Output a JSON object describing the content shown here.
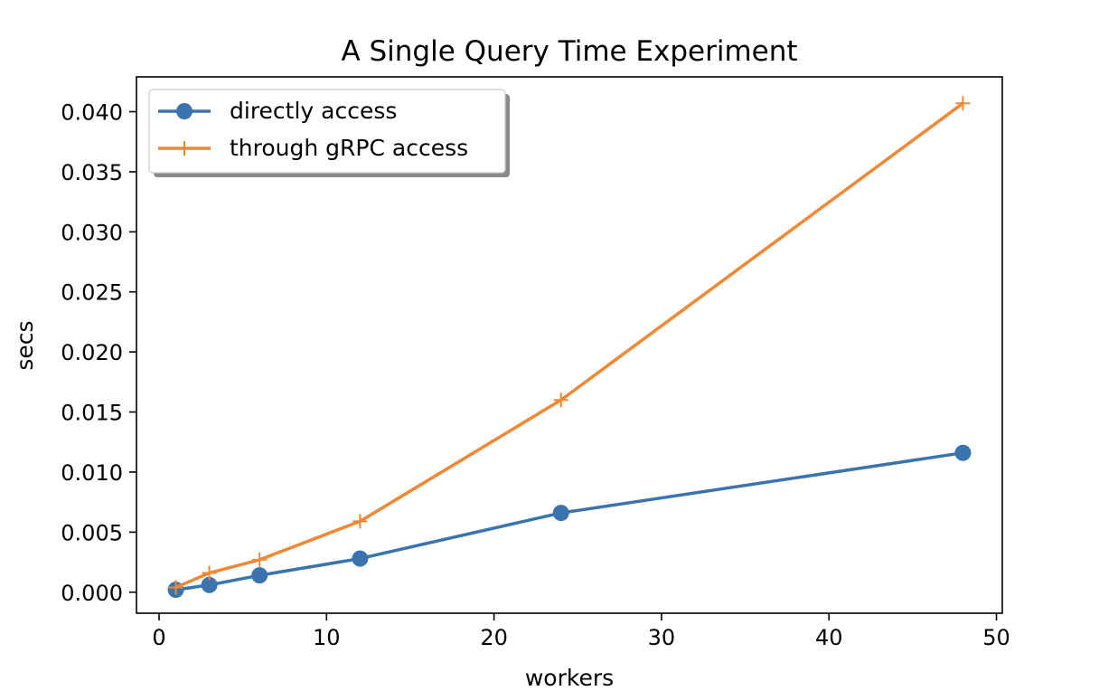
{
  "chart_data": {
    "type": "line",
    "title": "A Single Query Time Experiment",
    "xlabel": "workers",
    "ylabel": "secs",
    "xlim": [
      -1.35,
      50.35
    ],
    "ylim": [
      -0.00175,
      0.0429
    ],
    "xticks": [
      0,
      10,
      20,
      30,
      40,
      50
    ],
    "xtick_labels": [
      "0",
      "10",
      "20",
      "30",
      "40",
      "50"
    ],
    "yticks": [
      0.0,
      0.005,
      0.01,
      0.015,
      0.02,
      0.025,
      0.03,
      0.035,
      0.04
    ],
    "ytick_labels": [
      "0.000",
      "0.005",
      "0.010",
      "0.015",
      "0.020",
      "0.025",
      "0.030",
      "0.035",
      "0.040"
    ],
    "grid": false,
    "legend_position": "upper-left",
    "series": [
      {
        "name": "directly access",
        "color": "#3a73ad",
        "marker": "circle",
        "x": [
          1,
          3,
          6,
          12,
          24,
          48
        ],
        "y": [
          0.0002,
          0.0006,
          0.0014,
          0.0028,
          0.0066,
          0.0116
        ]
      },
      {
        "name": "through gRPC access",
        "color": "#f28734",
        "marker": "plus",
        "x": [
          1,
          3,
          6,
          12,
          24,
          48
        ],
        "y": [
          0.0004,
          0.0016,
          0.0027,
          0.0059,
          0.016,
          0.0407
        ]
      }
    ]
  }
}
